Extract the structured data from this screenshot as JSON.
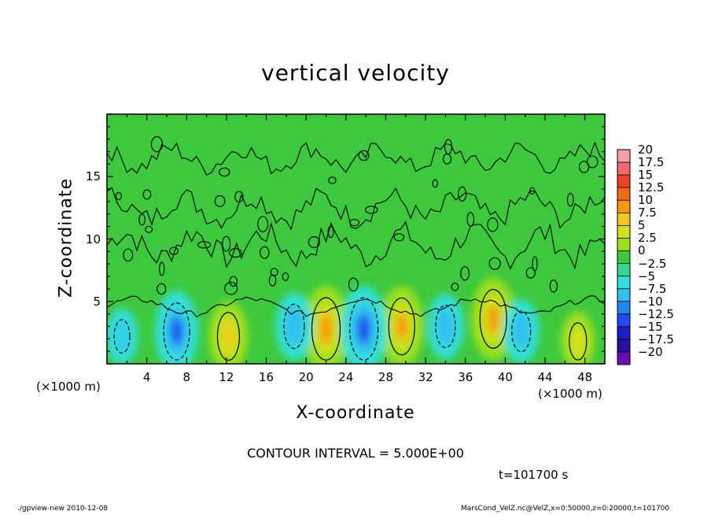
{
  "chart_data": {
    "type": "heatmap",
    "title": "vertical velocity",
    "xlabel": "X-coordinate",
    "ylabel": "Z-coordinate",
    "x_unit_label": "(×1000 m)",
    "x_ticks": [
      4,
      8,
      12,
      16,
      20,
      24,
      28,
      32,
      36,
      40,
      44,
      48
    ],
    "y_ticks": [
      5,
      10,
      15
    ],
    "xlim": [
      0,
      50
    ],
    "ylim": [
      0,
      20
    ],
    "contour_interval_text": "CONTOUR INTERVAL = 5.000E+00",
    "colorbar": {
      "labels": [
        "20",
        "17.5",
        "15",
        "12.5",
        "10",
        "7.5",
        "5",
        "2.5",
        "0",
        "−2.5",
        "−5",
        "−7.5",
        "−10",
        "−12.5",
        "−15",
        "−17.5",
        "−20"
      ],
      "levels": [
        20,
        17.5,
        15,
        12.5,
        10,
        7.5,
        5,
        2.5,
        0,
        -2.5,
        -5,
        -7.5,
        -10,
        -12.5,
        -15,
        -17.5,
        -20
      ],
      "colors": [
        "#f4a0a8",
        "#f06a6a",
        "#f0402a",
        "#f36b14",
        "#f59a10",
        "#f5c71e",
        "#d4e01e",
        "#9be01e",
        "#3ec83e",
        "#30d890",
        "#30e0d8",
        "#30c0f0",
        "#1e88f0",
        "#1e4cf0",
        "#1e1ec8",
        "#2a10a0",
        "#6a10b0"
      ]
    },
    "features": [
      {
        "x": 22.0,
        "z": 2.8,
        "value": 12.0
      },
      {
        "x": 29.6,
        "z": 3.0,
        "value": 10.5
      },
      {
        "x": 38.8,
        "z": 3.6,
        "value": 11.0
      },
      {
        "x": 12.2,
        "z": 2.2,
        "value": 8.0
      },
      {
        "x": 47.3,
        "z": 1.8,
        "value": 5.0
      },
      {
        "x": 7.0,
        "z": 2.6,
        "value": -10.5
      },
      {
        "x": 25.8,
        "z": 2.8,
        "value": -12.0
      },
      {
        "x": 18.8,
        "z": 3.0,
        "value": -7.0
      },
      {
        "x": 34.0,
        "z": 3.0,
        "value": -6.5
      },
      {
        "x": 41.6,
        "z": 2.6,
        "value": -6.0
      },
      {
        "x": 1.5,
        "z": 2.2,
        "value": -4.0
      }
    ]
  },
  "time_label": "t=101700 s",
  "footer": {
    "left": "./gpview-new  2010-12-08",
    "right": "MarsCond_VelZ.nc@VelZ,x=0:50000,z=0:20000,t=101700"
  }
}
